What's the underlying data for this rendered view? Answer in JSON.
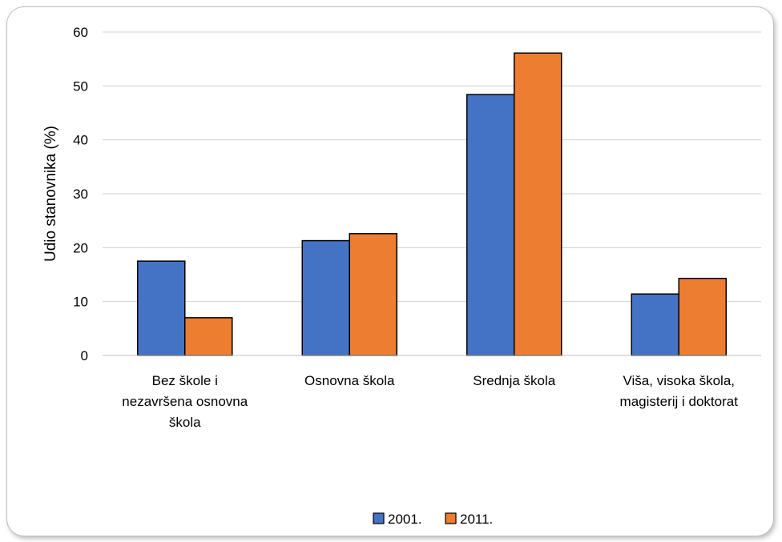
{
  "chart_data": {
    "type": "bar",
    "categories": [
      [
        "Bez škole i",
        "nezavršena osnovna",
        "škola"
      ],
      [
        "Osnovna škola"
      ],
      [
        "Srednja škola"
      ],
      [
        "Viša, visoka škola,",
        "magisterij i doktorat"
      ]
    ],
    "series": [
      {
        "name": "2001.",
        "color": "#4472C4",
        "values": [
          17.5,
          21.3,
          48.4,
          11.4
        ]
      },
      {
        "name": "2011.",
        "color": "#ED7D31",
        "values": [
          7.0,
          22.6,
          56.1,
          14.3
        ]
      }
    ],
    "title": "",
    "xlabel": "",
    "ylabel": "Udio stanovnika (%)",
    "ylim": [
      0,
      60
    ],
    "yticks": [
      0,
      10,
      20,
      30,
      40,
      50,
      60
    ],
    "grid": true,
    "legend_position": "bottom"
  }
}
